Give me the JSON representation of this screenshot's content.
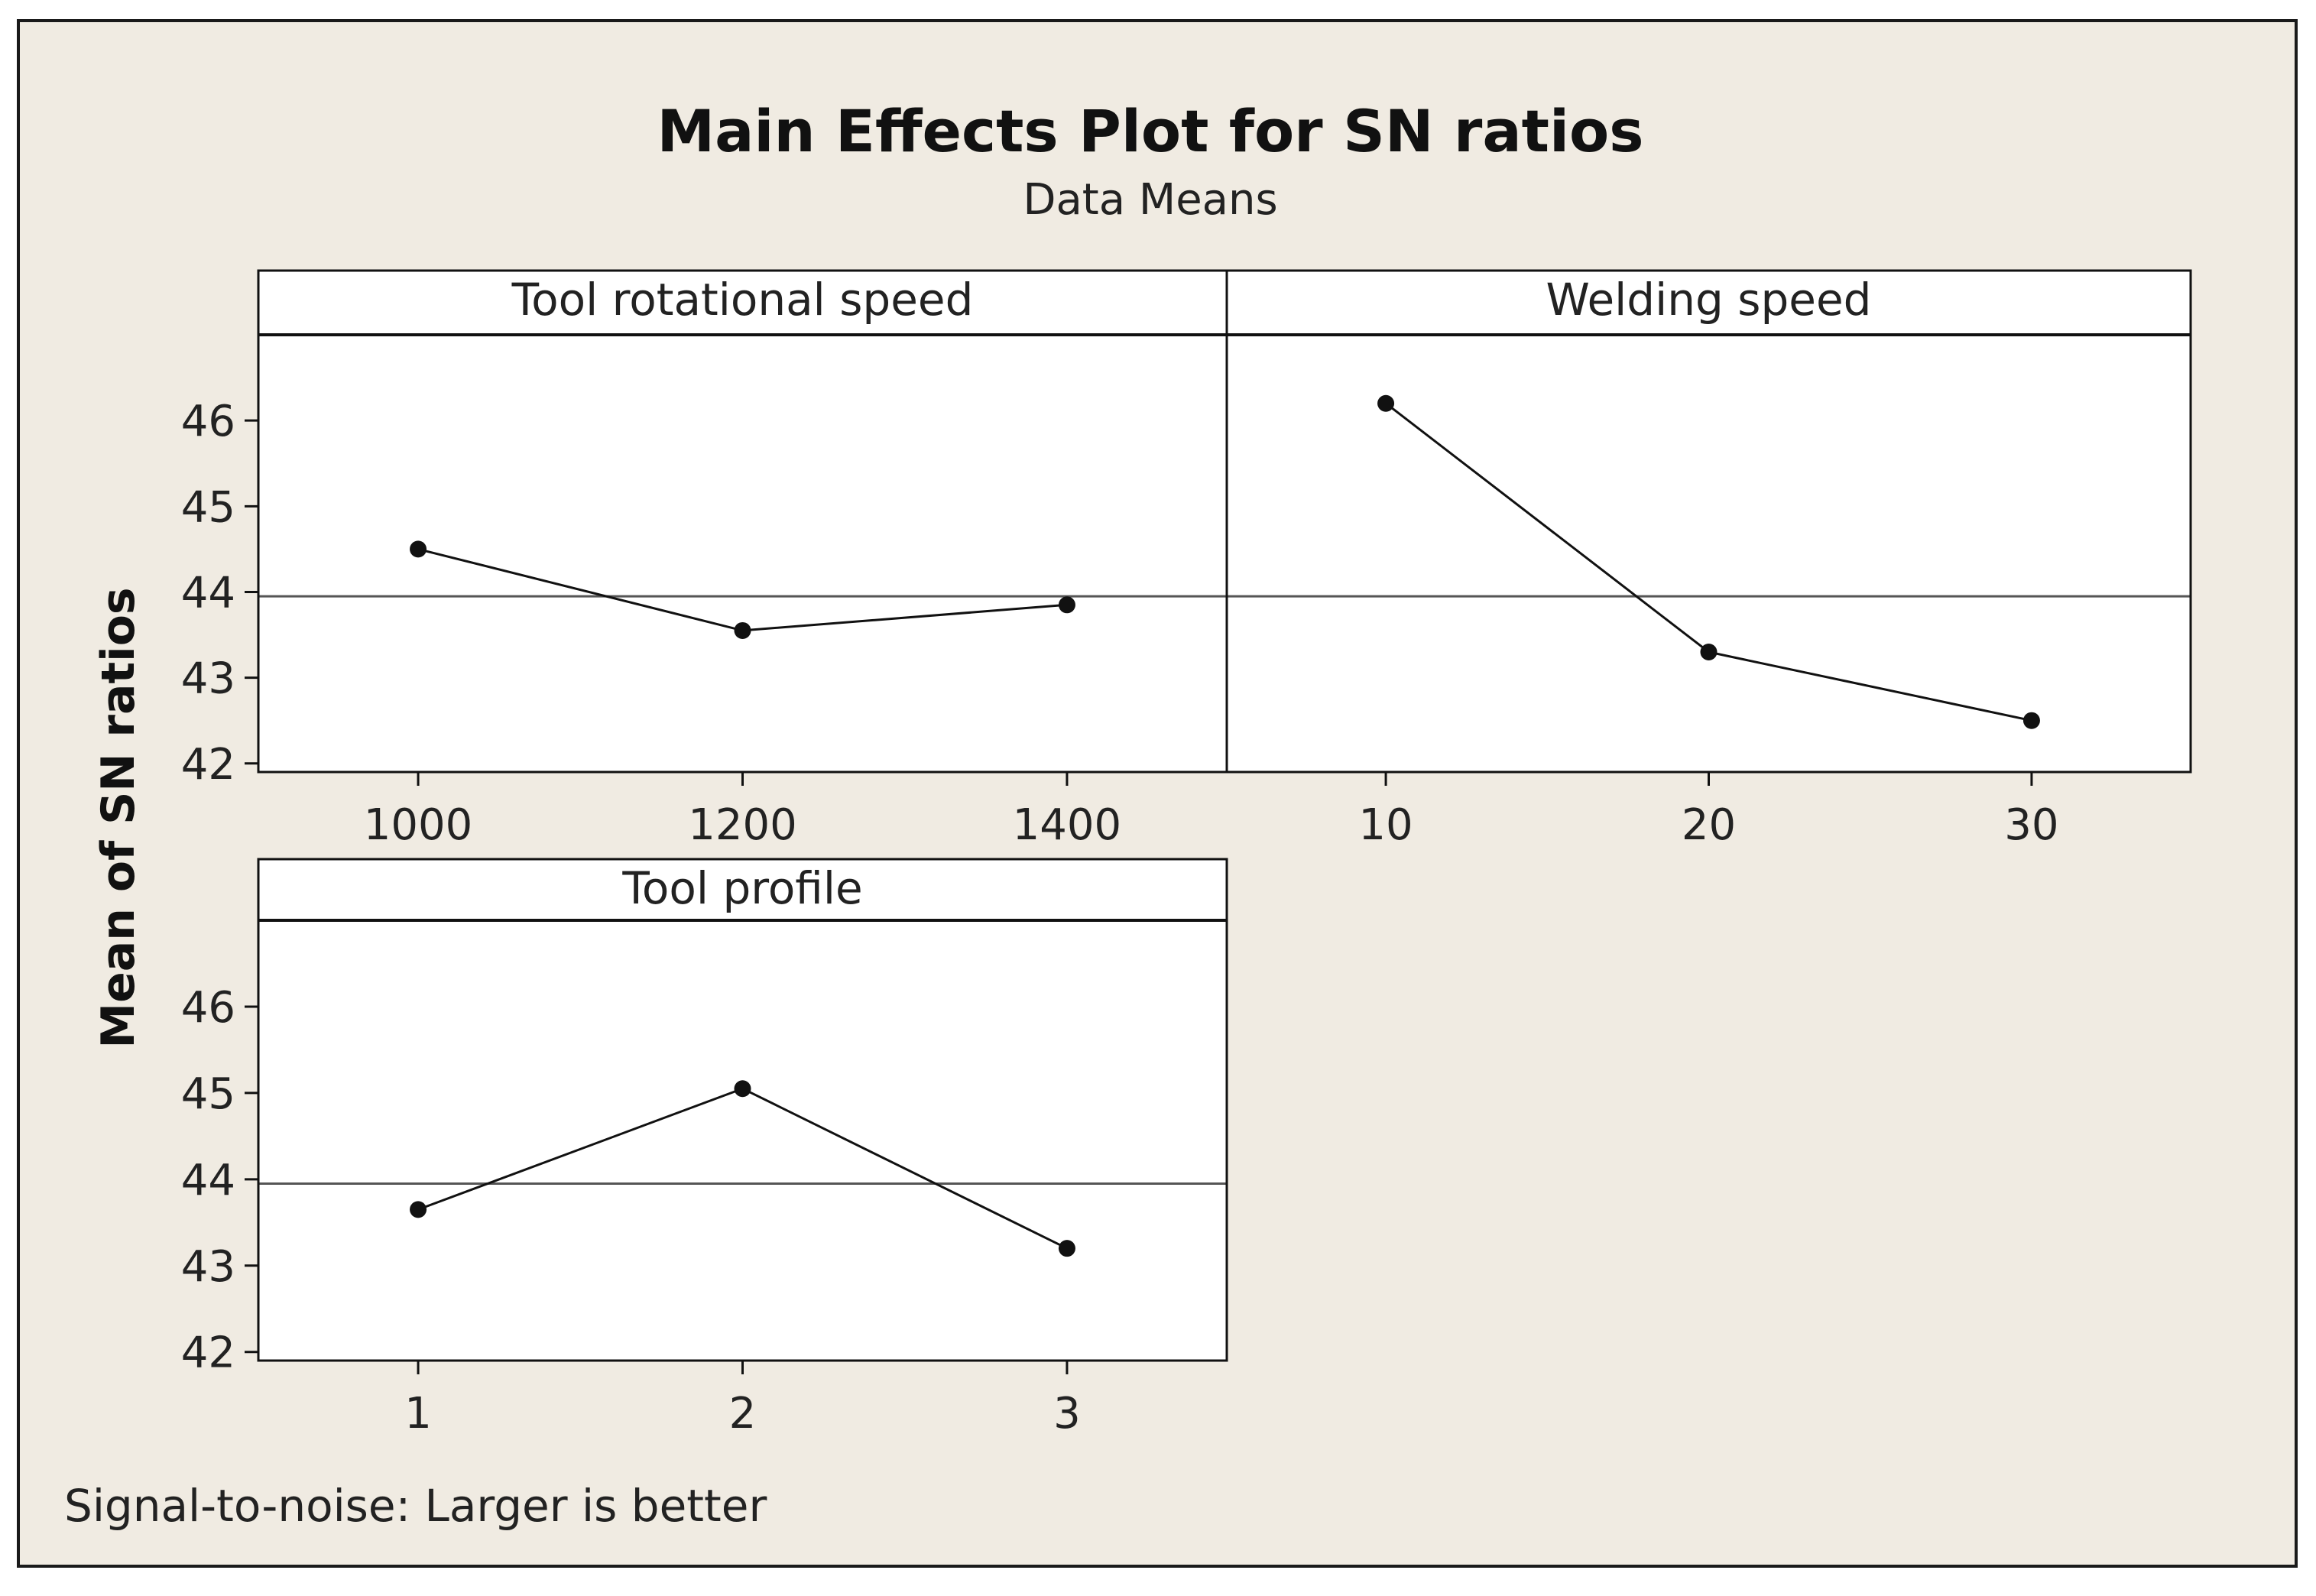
{
  "chart_data": {
    "type": "line",
    "title": "Main Effects Plot for SN ratios",
    "subtitle": "Data Means",
    "ylabel": "Mean of SN ratios",
    "ylim": [
      41.9,
      47.0
    ],
    "yticks": [
      42,
      43,
      44,
      45,
      46
    ],
    "overall_mean": 43.95,
    "footnote": "Signal-to-noise: Larger is better",
    "panels": [
      {
        "title": "Tool rotational speed",
        "x": [
          "1000",
          "1200",
          "1400"
        ],
        "values": [
          44.5,
          43.55,
          43.85
        ]
      },
      {
        "title": "Welding speed",
        "x": [
          "10",
          "20",
          "30"
        ],
        "values": [
          46.2,
          43.3,
          42.5
        ]
      },
      {
        "title": "Tool profile",
        "x": [
          "1",
          "2",
          "3"
        ],
        "values": [
          43.65,
          45.05,
          43.2
        ]
      }
    ]
  }
}
